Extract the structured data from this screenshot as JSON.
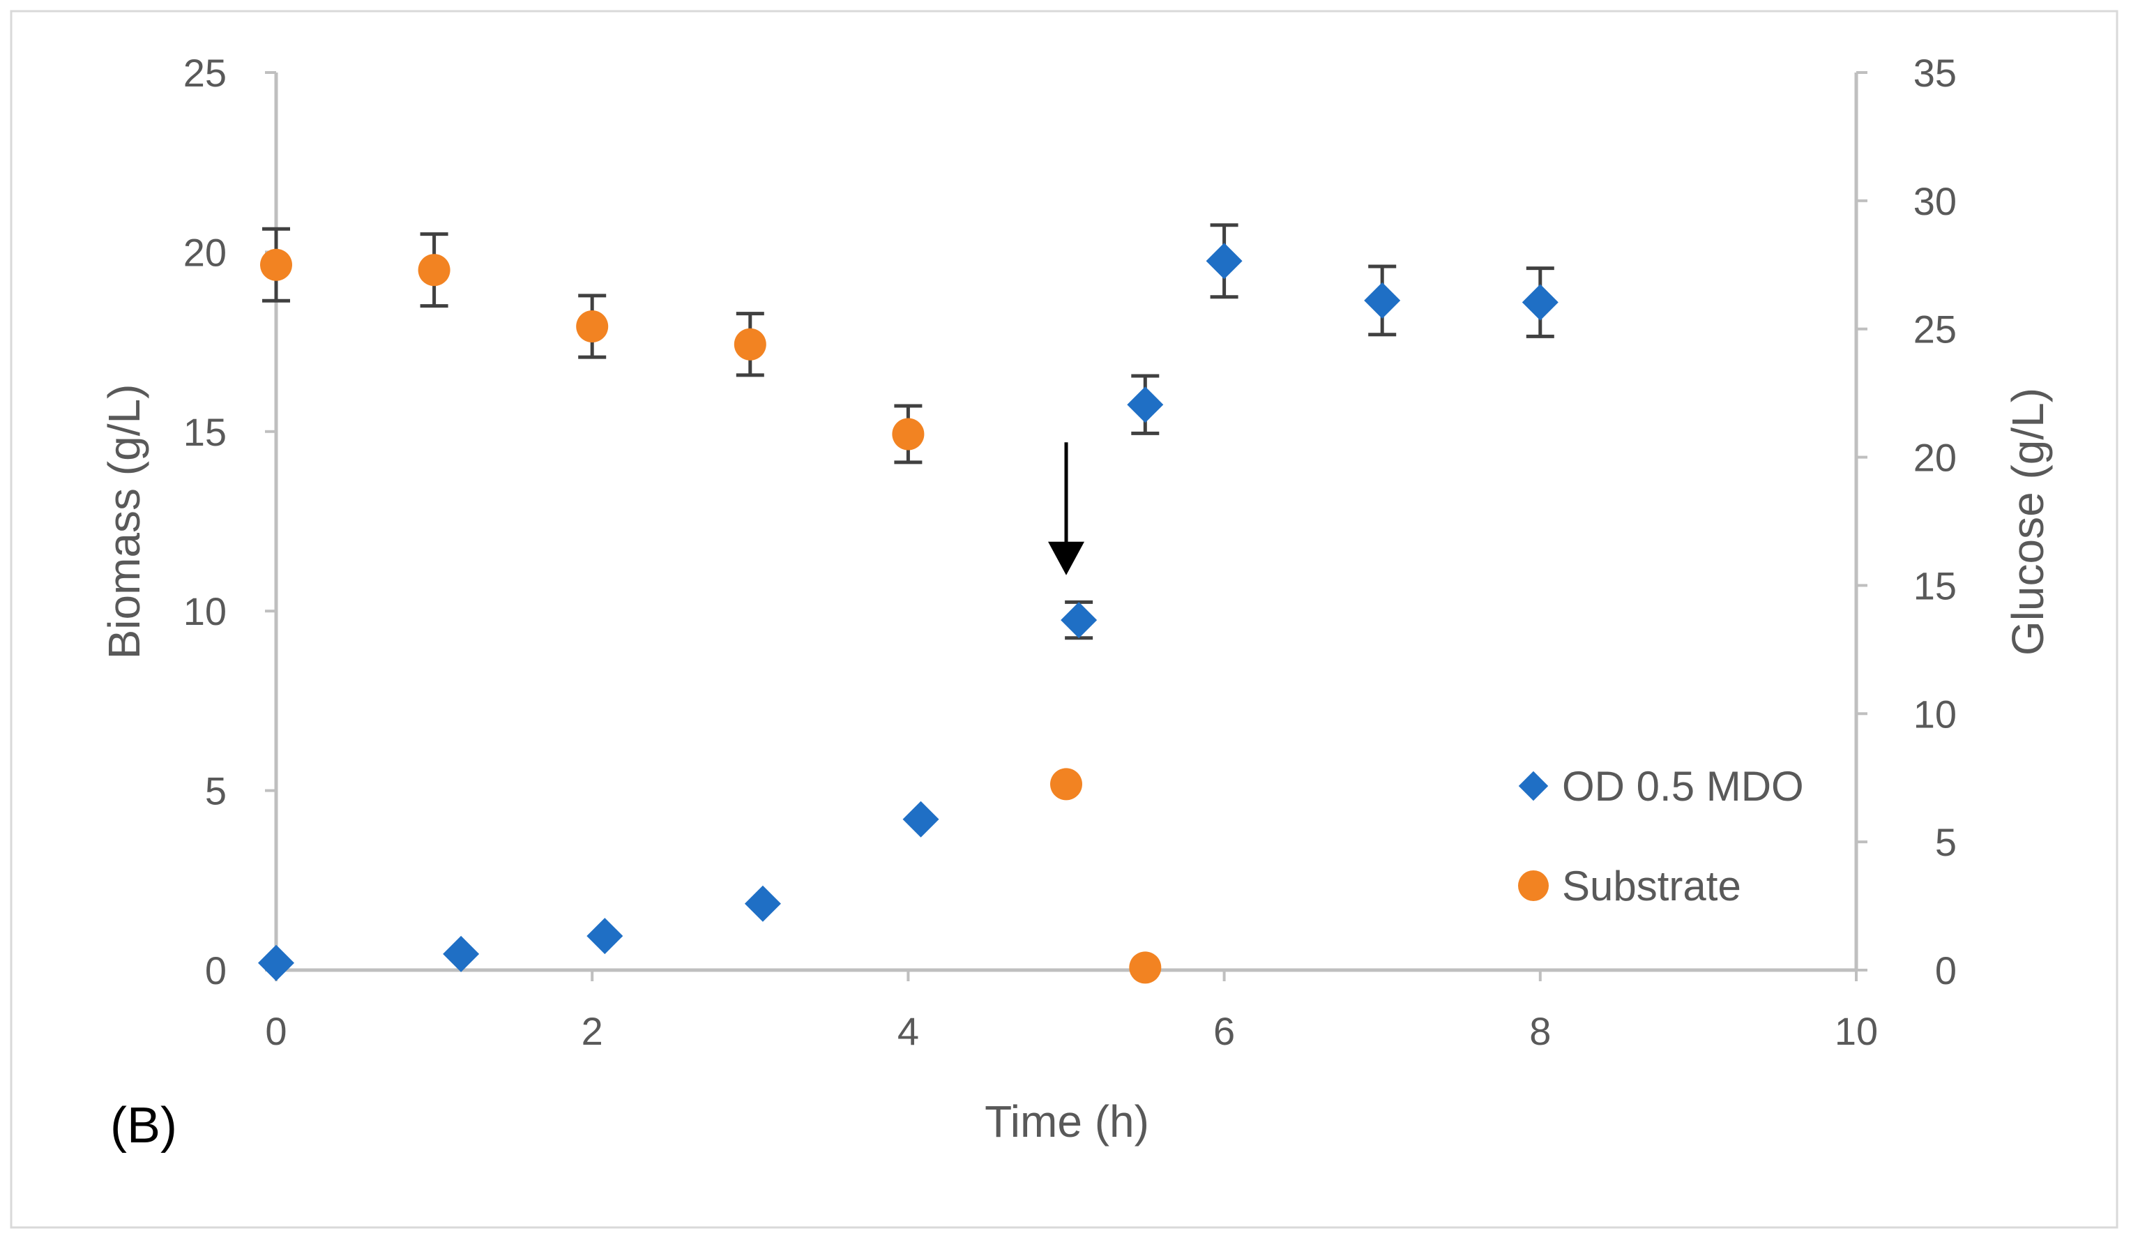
{
  "chart_data": {
    "type": "scatter",
    "panel_label": "(B)",
    "xlabel": "Time (h)",
    "ylabel": "Biomass (g/L)",
    "y2label": "Glucose (g/L)",
    "xlim": [
      0,
      10
    ],
    "ylim": [
      0,
      25
    ],
    "y2lim": [
      0,
      35
    ],
    "x_ticks": [
      "0",
      "2",
      "4",
      "6",
      "8",
      "10"
    ],
    "y_ticks": [
      "0",
      "5",
      "10",
      "15",
      "20",
      "25"
    ],
    "y2_ticks": [
      "0",
      "5",
      "10",
      "15",
      "20",
      "25",
      "30",
      "35"
    ],
    "grid": false,
    "legend_position": "bottom-right",
    "series": [
      {
        "name": "OD 0.5 MDO",
        "axis": "left",
        "marker": "diamond",
        "color": "#1f6fc5",
        "points": [
          {
            "x": 0.0,
            "y": 0.2,
            "err": 0
          },
          {
            "x": 1.17,
            "y": 0.45,
            "err": 0
          },
          {
            "x": 2.08,
            "y": 0.95,
            "err": 0
          },
          {
            "x": 3.08,
            "y": 1.85,
            "err": 0
          },
          {
            "x": 4.08,
            "y": 4.2,
            "err": 0
          },
          {
            "x": 5.08,
            "y": 9.75,
            "err": 0.5
          },
          {
            "x": 5.5,
            "y": 15.75,
            "err": 0.8
          },
          {
            "x": 6.0,
            "y": 19.75,
            "err": 1.0
          },
          {
            "x": 7.0,
            "y": 18.65,
            "err": 0.95
          },
          {
            "x": 8.0,
            "y": 18.6,
            "err": 0.95
          }
        ]
      },
      {
        "name": "Substrate",
        "axis": "right",
        "marker": "circle",
        "color": "#f28322",
        "points": [
          {
            "x": 0.0,
            "y": 27.5,
            "err": 1.4
          },
          {
            "x": 1.0,
            "y": 27.3,
            "err": 1.4
          },
          {
            "x": 2.0,
            "y": 25.1,
            "err": 1.2
          },
          {
            "x": 3.0,
            "y": 24.4,
            "err": 1.2
          },
          {
            "x": 4.0,
            "y": 20.9,
            "err": 1.1
          },
          {
            "x": 5.0,
            "y": 7.25,
            "err": 0
          },
          {
            "x": 5.5,
            "y": 0.1,
            "err": 0
          }
        ]
      }
    ],
    "annotations": [
      {
        "type": "arrow",
        "x": 5.0,
        "y_top": 14.7,
        "y_bottom": 11.0,
        "direction": "down"
      }
    ]
  }
}
